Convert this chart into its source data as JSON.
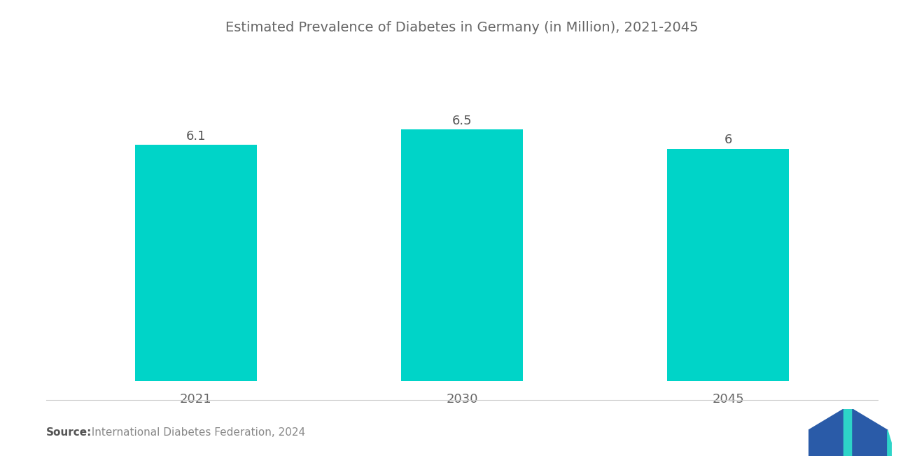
{
  "title": "Estimated Prevalence of Diabetes in Germany (in Million), 2021-2045",
  "categories": [
    "2021",
    "2030",
    "2045"
  ],
  "values": [
    6.1,
    6.5,
    6.0
  ],
  "bar_color": "#00D4C8",
  "value_labels": [
    "6.1",
    "6.5",
    "6"
  ],
  "background_color": "#ffffff",
  "title_color": "#666666",
  "title_fontsize": 14,
  "label_fontsize": 13,
  "tick_fontsize": 13,
  "source_bold": "Source:",
  "source_text": "  International Diabetes Federation, 2024",
  "source_fontsize": 11,
  "ylim": [
    0,
    7.8
  ],
  "bar_width": 0.55,
  "x_positions": [
    0,
    1.2,
    2.4
  ]
}
